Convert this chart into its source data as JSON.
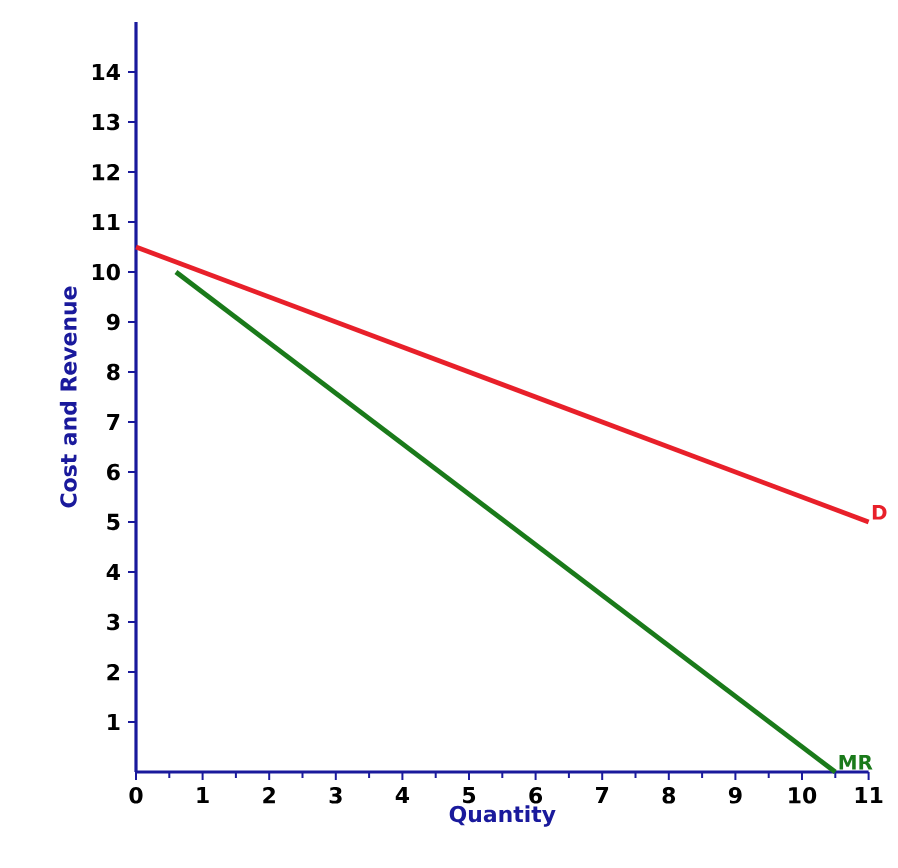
{
  "chart_data": {
    "type": "line",
    "xlabel": "Quantity",
    "ylabel": "Cost and Revenue",
    "xlim": [
      0,
      11
    ],
    "ylim": [
      0,
      15
    ],
    "xticks": [
      0,
      1,
      2,
      3,
      4,
      5,
      6,
      7,
      8,
      9,
      10,
      11
    ],
    "yticks": [
      1,
      2,
      3,
      4,
      5,
      6,
      7,
      8,
      9,
      10,
      11,
      12,
      13,
      14
    ],
    "series": [
      {
        "name": "D",
        "color": "#e8202a",
        "x": [
          0,
          11
        ],
        "values": [
          10.5,
          5
        ]
      },
      {
        "name": "MR",
        "color": "#1a7a1a",
        "x": [
          0.6,
          10.5
        ],
        "values": [
          10,
          0
        ]
      }
    ],
    "grid": false,
    "marker": "none",
    "line_style": "solid"
  }
}
